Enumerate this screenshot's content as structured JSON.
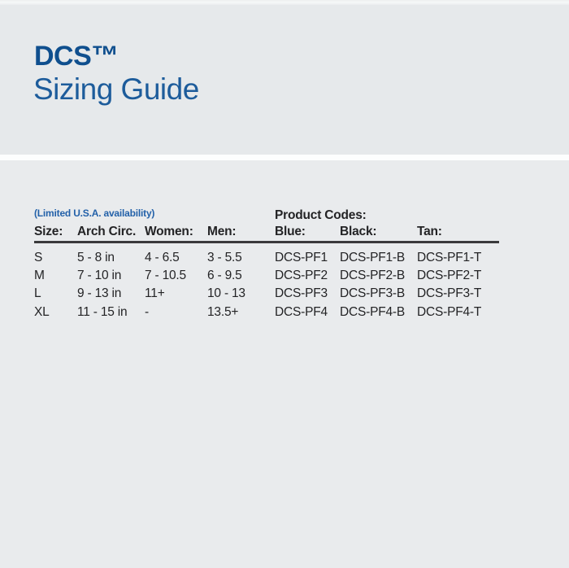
{
  "colors": {
    "header_background": "#e6e9eb",
    "body_background": "#e9ebed",
    "divider": "#fdfefe",
    "title_blue": "#0f4f8e",
    "subtitle_blue": "#1d5c9b",
    "note_blue": "#2361a9",
    "text_dark": "#232325",
    "rule_dark": "#3a3a3c"
  },
  "header": {
    "title": "DCS™",
    "subtitle": "Sizing Guide"
  },
  "table": {
    "note": "(Limited U.S.A. availability)",
    "product_codes_label": "Product Codes:",
    "columns": [
      "Size:",
      "Arch Circ.",
      "Women:",
      "Men:",
      "Blue:",
      "Black:",
      "Tan:"
    ],
    "rows": [
      [
        "S",
        "5 - 8 in",
        "4 - 6.5",
        "3 - 5.5",
        "DCS-PF1",
        "DCS-PF1-B",
        "DCS-PF1-T"
      ],
      [
        "M",
        "7 - 10 in",
        "7 - 10.5",
        "6 - 9.5",
        "DCS-PF2",
        "DCS-PF2-B",
        "DCS-PF2-T"
      ],
      [
        "L",
        "9 - 13 in",
        "11+",
        "10 - 13",
        "DCS-PF3",
        "DCS-PF3-B",
        "DCS-PF3-T"
      ],
      [
        "XL",
        "11 - 15 in",
        "-",
        "13.5+",
        "DCS-PF4",
        "DCS-PF4-B",
        "DCS-PF4-T"
      ]
    ]
  }
}
